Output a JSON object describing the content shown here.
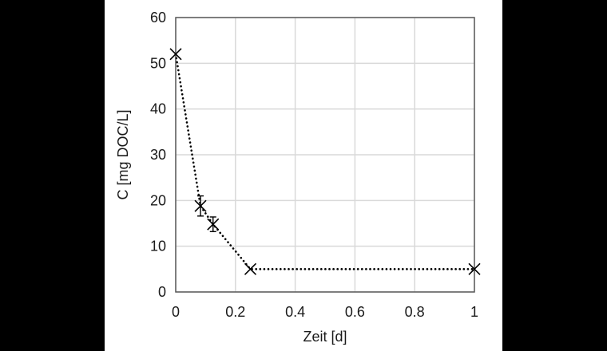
{
  "chart_data": {
    "type": "scatter",
    "title": "",
    "xlabel": "Zeit [d]",
    "ylabel": "C [mg DOC/L]",
    "xlim": [
      0,
      1
    ],
    "ylim": [
      0,
      60
    ],
    "xticks": [
      0,
      0.2,
      0.4,
      0.6,
      0.8,
      1
    ],
    "xtick_labels": [
      "0",
      "0.2",
      "0.4",
      "0.6",
      "0.8",
      "1"
    ],
    "yticks": [
      0,
      10,
      20,
      30,
      40,
      50,
      60
    ],
    "ytick_labels": [
      "0",
      "10",
      "20",
      "30",
      "40",
      "50",
      "60"
    ],
    "grid": true,
    "legend": null,
    "series": [
      {
        "name": "DOC",
        "marker": "x",
        "line_style": "dotted",
        "color": "#000000",
        "x": [
          0,
          0.083,
          0.125,
          0.25,
          1
        ],
        "y": [
          52,
          18.8,
          14.8,
          5,
          5
        ],
        "error": [
          0,
          2.2,
          1.6,
          0,
          0
        ]
      }
    ]
  },
  "colors": {
    "background": "#000000",
    "panel": "#ffffff",
    "grid": "#d9d9d9",
    "axis": "#595959",
    "series": "#000000"
  }
}
